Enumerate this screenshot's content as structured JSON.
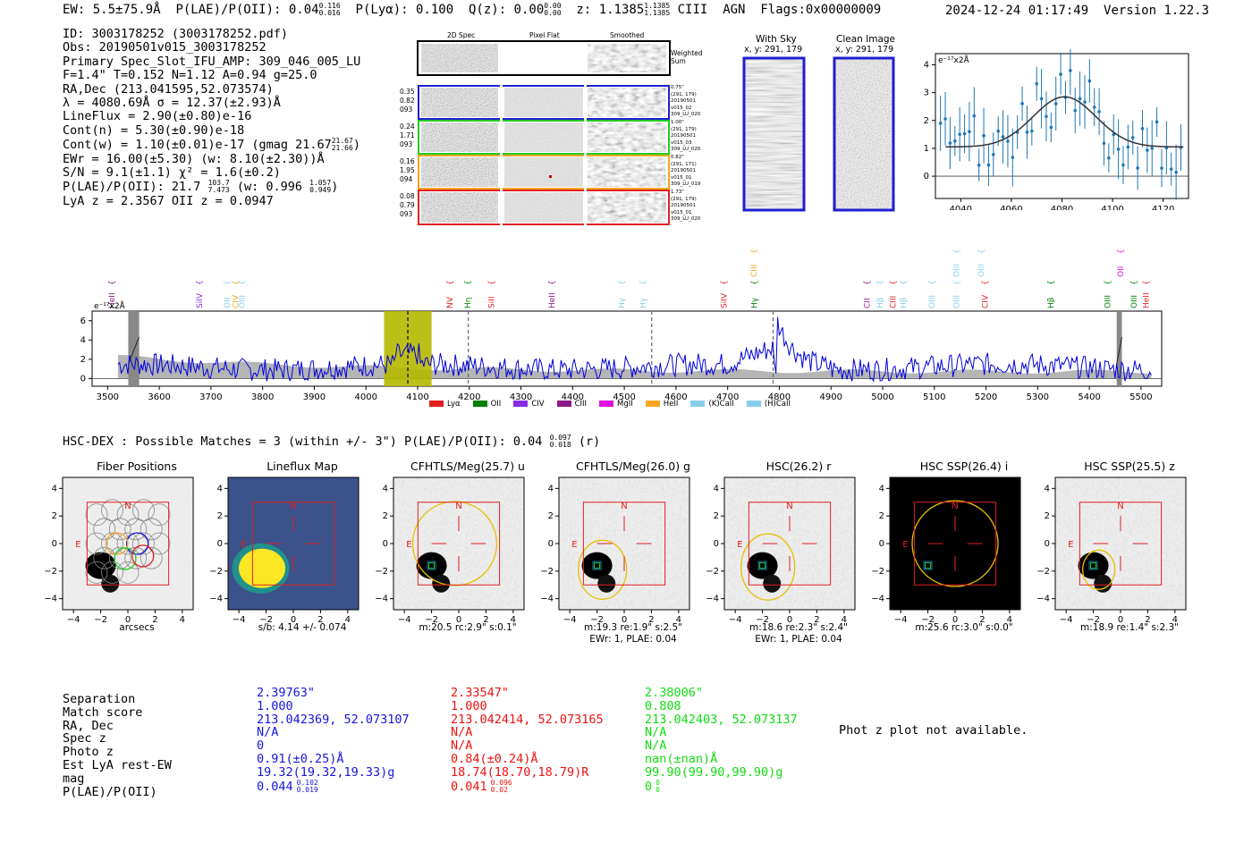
{
  "header": {
    "ew": "EW: 5.5±75.9Å",
    "plae_label": "P(LAE)/P(OII): 0.04",
    "plae_hi": "0.116",
    "plae_lo": "0.016",
    "plya": "P(Lyα): 0.100",
    "qz_label": "Q(z): 0.00",
    "qz_hi": "0.00",
    "qz_lo": "0.00",
    "z_label": "z: 1.1385",
    "z_hi": "1.1385",
    "z_lo": "1.1385",
    "line_type": "CIII",
    "agn": "AGN",
    "flags": "Flags:0x00000009",
    "timestamp": "2024-12-24 01:17:49",
    "version": "Version 1.22.3"
  },
  "info": {
    "id": "ID: 3003178252 (3003178252.pdf)",
    "obs": "Obs: 20190501v015_3003178252",
    "primary": "Primary Spec_Slot_IFU_AMP: 309_046_005_LU",
    "params": "F=1.4\"  T=0.152  N=1.12  A=0.94  g=25.0",
    "radec": "RA,Dec (213.041595,52.073574)",
    "lambda": "λ = 4080.69Å  σ = 12.37(±2.93)Å",
    "lineflux": "LineFlux = 2.90(±0.80)e-16",
    "contn": "Cont(n) = 5.30(±0.90)e-18",
    "contw": "Cont(w) = 1.10(±0.01)e-17 (gmag 21.67",
    "gmag_hi": "21.67",
    "gmag_lo": "21.66",
    "gmag_close": ")",
    "ewr": "EWr = 16.00(±5.30) (w: 8.10(±2.30))Å",
    "sn": "S/N = 9.1(±1.1)  χ² = 1.6(±0.2)",
    "plae": "P(LAE)/P(OII): 21.7",
    "plae_hi": "103.7",
    "plae_lo": "7.473",
    "plae_w": "(w: 0.996",
    "plae_w_hi": "1.057",
    "plae_w_lo": "0.949",
    "plae_w_close": ")",
    "lya_z": "LyA z = 2.3567  OII z = 0.0947"
  },
  "cutouts": {
    "col_2d": "2D Spec",
    "col_flat": "Pixel Flat",
    "col_smooth": "Smoothed",
    "weighted_sum": "Weighted Sum",
    "rows": [
      {
        "color": "#1f1fd0",
        "left": [
          "0.35",
          "0.82",
          "093"
        ],
        "right": [
          "0.75\"",
          "(291, 179)",
          "20190501",
          "v015_02",
          "309_LU_020"
        ]
      },
      {
        "color": "#22cc22",
        "left": [
          "0.24",
          "1.71",
          "093"
        ],
        "right": [
          "1.00\"",
          "(291, 179)",
          "20190501",
          "v015_03",
          "309_LU_020"
        ]
      },
      {
        "color": "#f5a623",
        "left": [
          "0.16",
          "1.95",
          "094"
        ],
        "right": [
          "0.82\"",
          "(291, 171)",
          "20190501",
          "v015_01",
          "309_LU_019"
        ]
      },
      {
        "color": "#e02020",
        "left": [
          "0.08",
          "0.79",
          "093"
        ],
        "right": [
          "1.73\"",
          "(291, 179)",
          "20190501",
          "v015_01",
          "309_LU_020"
        ]
      }
    ],
    "with_sky": "With Sky",
    "with_sky_xy": "x, y: 291, 179",
    "clean": "Clean Image",
    "clean_xy": "x, y: 291, 179"
  },
  "zoom_plot": {
    "ylabel": "e⁻¹⁷x2Å",
    "xticks": [
      "4040",
      "4060",
      "4080",
      "4100",
      "4120"
    ],
    "yticks": [
      "0",
      "1",
      "2",
      "3",
      "4"
    ]
  },
  "spectrum": {
    "ylabel": "e⁻¹⁷x2Å",
    "xticks": [
      "3500",
      "3600",
      "3700",
      "3800",
      "3900",
      "4000",
      "4100",
      "4200",
      "4300",
      "4400",
      "4500",
      "4600",
      "4700",
      "4800",
      "4900",
      "5000",
      "5100",
      "5200",
      "5300",
      "5400",
      "5500"
    ],
    "yticks": [
      "0",
      "2",
      "4",
      "6"
    ],
    "lines": [
      {
        "label": "HeII",
        "wave": 3508,
        "color": "#8b1a8b",
        "tier": 0
      },
      {
        "label": "SiIV",
        "wave": 3678,
        "color": "#8a2be2",
        "tier": 0
      },
      {
        "label": "OII",
        "wave": 3731,
        "color": "#87ceeb",
        "tier": 0
      },
      {
        "label": "CIV",
        "wave": 3748,
        "color": "#f5a623",
        "tier": 0
      },
      {
        "label": "OIII",
        "wave": 3760,
        "color": "#87ceeb",
        "tier": 0
      },
      {
        "label": "NV",
        "wave": 4162,
        "color": "#e02020",
        "tier": 0
      },
      {
        "label": "Hη",
        "wave": 4197,
        "color": "#008000",
        "tier": 0
      },
      {
        "label": "SiII",
        "wave": 4243,
        "color": "#e02020",
        "tier": 0
      },
      {
        "label": "HeII",
        "wave": 4360,
        "color": "#8b1a8b",
        "tier": 0
      },
      {
        "label": "Hγ",
        "wave": 4495,
        "color": "#87ceeb",
        "tier": 0
      },
      {
        "label": "Hγ",
        "wave": 4536,
        "color": "#87ceeb",
        "tier": 0
      },
      {
        "label": "SiIV",
        "wave": 4693,
        "color": "#e02020",
        "tier": 0
      },
      {
        "label": "CIII",
        "wave": 4751,
        "color": "#f5a623",
        "tier": 2
      },
      {
        "label": "Hγ",
        "wave": 4752,
        "color": "#008000",
        "tier": 0
      },
      {
        "label": "CII",
        "wave": 4970,
        "color": "#8b1a8b",
        "tier": 0
      },
      {
        "label": "Hβ",
        "wave": 4995,
        "color": "#87ceeb",
        "tier": 0
      },
      {
        "label": "CIII",
        "wave": 5020,
        "color": "#e02020",
        "tier": 0
      },
      {
        "label": "Hβ",
        "wave": 5040,
        "color": "#87ceeb",
        "tier": 0
      },
      {
        "label": "OIII",
        "wave": 5095,
        "color": "#87ceeb",
        "tier": 0
      },
      {
        "label": "OIII",
        "wave": 5143,
        "color": "#87ceeb",
        "tier": 0
      },
      {
        "label": "OIII",
        "wave": 5143,
        "color": "#87ceeb",
        "tier": 2
      },
      {
        "label": "OIII",
        "wave": 5190,
        "color": "#87ceeb",
        "tier": 2
      },
      {
        "label": "CIV",
        "wave": 5198,
        "color": "#e02020",
        "tier": 0
      },
      {
        "label": "Hβ",
        "wave": 5325,
        "color": "#008000",
        "tier": 0
      },
      {
        "label": "OIII",
        "wave": 5435,
        "color": "#008000",
        "tier": 0
      },
      {
        "label": "OII",
        "wave": 5460,
        "color": "#e010e0",
        "tier": 2
      },
      {
        "label": "OIII",
        "wave": 5486,
        "color": "#008000",
        "tier": 0
      },
      {
        "label": "HeII",
        "wave": 5510,
        "color": "#e02020",
        "tier": 0
      }
    ],
    "legend": [
      {
        "label": "Lyα",
        "color": "#e02020"
      },
      {
        "label": "OII",
        "color": "#008000"
      },
      {
        "label": "CIV",
        "color": "#8a2be2"
      },
      {
        "label": "CIII",
        "color": "#8b1a8b"
      },
      {
        "label": "MgII",
        "color": "#e010e0"
      },
      {
        "label": "HeII",
        "color": "#f5a623"
      },
      {
        "label": "(K)CaII",
        "color": "#87ceeb"
      },
      {
        "label": "(H)CaII",
        "color": "#87ceeb"
      }
    ]
  },
  "hsc": {
    "title": "HSC-DEX : Possible Matches = 3 (within +/- 3\")  P(LAE)/P(OII): 0.04",
    "hi": "0.097",
    "lo": "0.018",
    "suffix": "(r)",
    "panels": [
      {
        "title": "Fiber Positions",
        "cap1": "arcsecs",
        "cap2": ""
      },
      {
        "title": "Lineflux Map",
        "cap1": "s/b: 4.14 +/- 0.074",
        "cap2": ""
      },
      {
        "title": "CFHTLS/Meg(25.7) u",
        "cap1": "m:20.5 rc:2.9\"  s:0.1\"",
        "cap2": ""
      },
      {
        "title": "CFHTLS/Meg(26.0) g",
        "cap1": "m:19.3  re:1.9\"  s:2.5\"",
        "cap2": "EWr: 1, PLAE: 0.04"
      },
      {
        "title": "HSC(26.2) r",
        "cap1": "m:18.6  re:2.3\"  s:2.4\"",
        "cap2": "EWr: 1, PLAE: 0.04"
      },
      {
        "title": "HSC SSP(26.4) i",
        "cap1": "m:25.6 rc:3.0\"  s:0.0\"",
        "cap2": ""
      },
      {
        "title": "HSC SSP(25.5) z",
        "cap1": "m:18.9  re:1.4\"  s:2.3\"",
        "cap2": ""
      }
    ],
    "ticks": [
      "−4",
      "−2",
      "0",
      "2",
      "4"
    ],
    "north": "N",
    "east": "E"
  },
  "matches": {
    "labels": [
      "Separation",
      "Match score",
      "RA, Dec",
      "Spec z",
      "Photo z",
      "Est LyA rest-EW",
      "mag",
      "P(LAE)/P(OII)"
    ],
    "columns": [
      {
        "color": "#1515e0",
        "values": [
          "2.39763\"",
          "1.000",
          "213.042369, 52.073107",
          "N/A",
          "0",
          "0.91(±0.25)Å",
          "19.32(19.32,19.33)g",
          "0.044"
        ],
        "hi": "0.102",
        "lo": "0.019"
      },
      {
        "color": "#ee1111",
        "values": [
          "2.33547\"",
          "1.000",
          "213.042414, 52.073165",
          "N/A",
          "N/A",
          "0.84(±0.24)Å",
          "18.74(18.70,18.79)R",
          "0.041"
        ],
        "hi": "0.096",
        "lo": "0.02"
      },
      {
        "color": "#11dd11",
        "values": [
          "2.38006\"",
          "0.808",
          "213.042403, 52.073137",
          "N/A",
          "N/A",
          "nan(±nan)Å",
          "99.90(99.90,99.90)g",
          "0"
        ],
        "hi": "0",
        "lo": "0"
      }
    ],
    "photz_note": "Phot z plot not available."
  }
}
